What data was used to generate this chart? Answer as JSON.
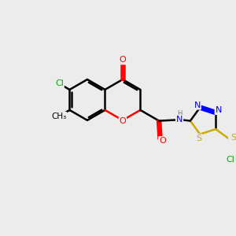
{
  "background_color": "#ececec",
  "bond_color": "#000000",
  "bond_width": 1.8,
  "atom_colors": {
    "O": "#ff0000",
    "N": "#0000ff",
    "S": "#ccaa00",
    "Cl": "#00aa00",
    "C": "#000000",
    "H": "#777777"
  },
  "font_size": 8.0,
  "figsize": [
    3.0,
    3.0
  ],
  "dpi": 100
}
